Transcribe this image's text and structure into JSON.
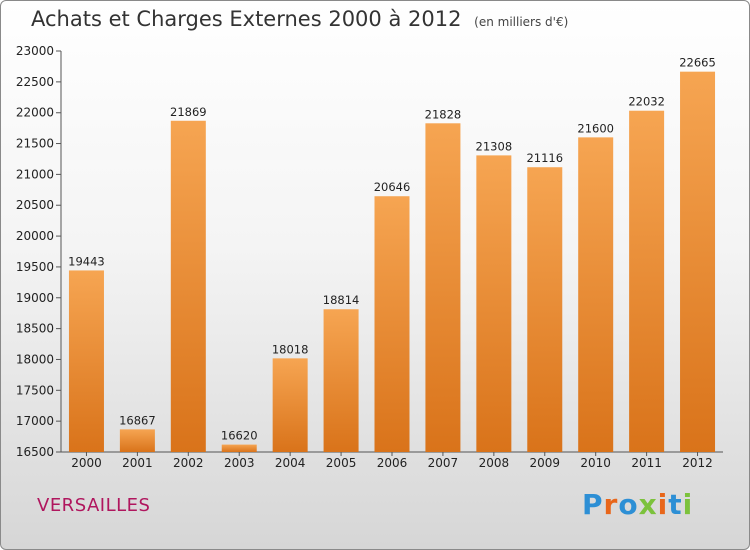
{
  "header": {
    "title": "Achats et Charges Externes 2000 à 2012",
    "subtitle": "(en milliers d'€)"
  },
  "footer": {
    "city": "VERSAILLES",
    "logo_text": "Proxiti"
  },
  "colors": {
    "bar_top": "#f6a552",
    "bar_bottom": "#d9731a",
    "city": "#b0165e",
    "logo": [
      "#2d8fd5",
      "#e8661a",
      "#2d8fd5",
      "#7cc23c",
      "#e8661a",
      "#2d8fd5",
      "#7cc23c"
    ]
  },
  "chart_data": {
    "type": "bar",
    "title": "Achats et Charges Externes 2000 à 2012",
    "categories": [
      "2000",
      "2001",
      "2002",
      "2003",
      "2004",
      "2005",
      "2006",
      "2007",
      "2008",
      "2009",
      "2010",
      "2011",
      "2012"
    ],
    "values": [
      19443,
      16867,
      21869,
      16620,
      18018,
      18814,
      20646,
      21828,
      21308,
      21116,
      21600,
      22032,
      22665
    ],
    "ylim": [
      16500,
      23000
    ],
    "yticks": [
      16500,
      17000,
      17500,
      18000,
      18500,
      19000,
      19500,
      20000,
      20500,
      21000,
      21500,
      22000,
      22500,
      23000
    ],
    "grid": false,
    "legend": "none"
  }
}
